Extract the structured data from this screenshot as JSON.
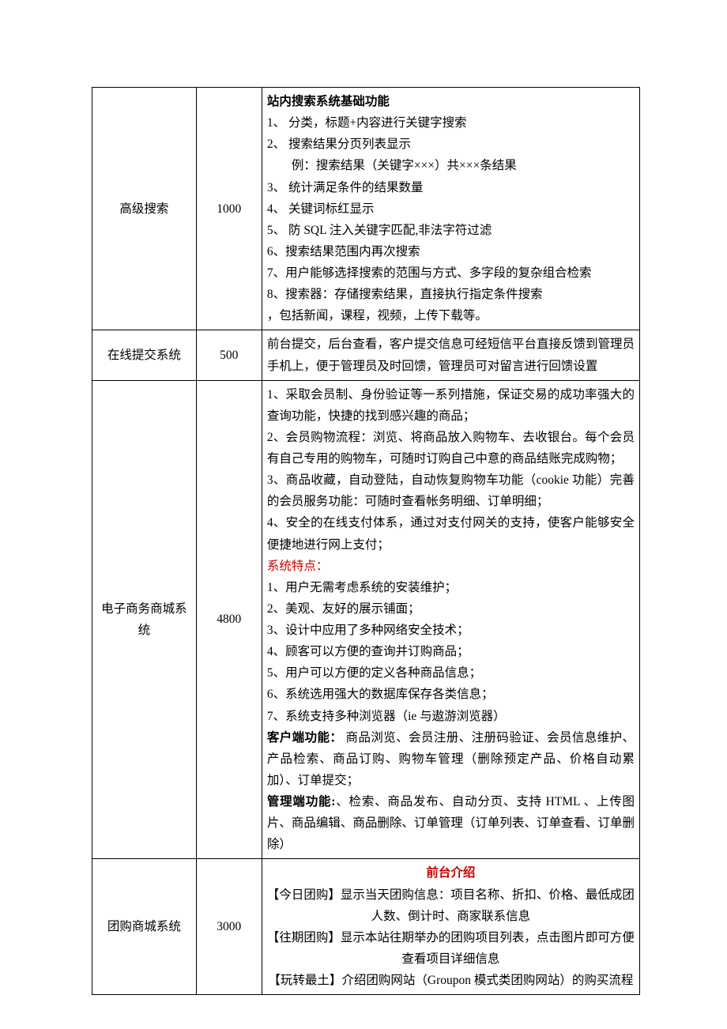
{
  "rows": [
    {
      "name": "高级搜索",
      "price": "1000",
      "desc": [
        {
          "text": "站内搜索系统基础功能",
          "bold": true
        },
        {
          "text": "1、 分类，标题+内容进行关键字搜索"
        },
        {
          "text": "2、 搜索结果分页列表显示"
        },
        {
          "text": "例：搜索结果（关键字×××）共×××条结果",
          "indent": true
        },
        {
          "text": "3、 统计满足条件的结果数量"
        },
        {
          "text": "4、 关键词标红显示"
        },
        {
          "text": "5、 防 SQL 注入关键字匹配,非法字符过滤"
        },
        {
          "text": "6、搜索结果范围内再次搜索"
        },
        {
          "text": "7、用户能够选择搜索的范围与方式、多字段的复杂组合检索"
        },
        {
          "text": "8、搜索器：存储搜索结果，直接执行指定条件搜索"
        },
        {
          "text": "，包括新闻，课程，视频，上传下载等。"
        }
      ]
    },
    {
      "name": "在线提交系统",
      "price": "500",
      "desc": [
        {
          "text": "前台提交，后台查看，客户提交信息可经短信平台直接反馈到管理员手机上，便于管理员及时回馈，管理员可对留言进行回馈设置"
        }
      ]
    },
    {
      "name": "电子商务商城系统",
      "price": "4800",
      "desc": [
        {
          "text": "1、采取会员制、身份验证等一系列措施，保证交易的成功率强大的查询功能，快捷的找到感兴趣的商品；"
        },
        {
          "text": "2、会员购物流程：浏览、将商品放入购物车、去收银台。每个会员有自己专用的购物车，可随时订购自己中意的商品结账完成购物；"
        },
        {
          "text": "3、商品收藏，自动登陆，自动恢复购物车功能（cookie 功能）完善的会员服务功能：可随时查看帐务明细、订单明细；"
        },
        {
          "text": "4、安全的在线支付体系，通过对支付网关的支持，使客户能够安全便捷地进行网上支付；"
        },
        {
          "text": "系统特点：",
          "red": true
        },
        {
          "text": "1、用户无需考虑系统的安装维护；"
        },
        {
          "text": "2、美观、友好的展示铺面；"
        },
        {
          "text": "3、设计中应用了多种网络安全技术；"
        },
        {
          "text": "4、顾客可以方便的查询并订购商品；"
        },
        {
          "text": "5、用户可以方便的定义各种商品信息；"
        },
        {
          "text": "6、系统选用强大的数据库保存各类信息；"
        },
        {
          "text": "7、系统支持多种浏览器（ie 与遨游浏览器）"
        },
        {
          "spans": [
            {
              "text": "客户端功能：",
              "bold": true
            },
            {
              "text": "  商品浏览、会员注册、注册码验证、会员信息维护、产品检索、商品订购、购物车管理（删除预定产品、价格自动累加）、订单提交；"
            }
          ]
        },
        {
          "spans": [
            {
              "text": "管理端功能:",
              "bold": true
            },
            {
              "text": "、检索、商品发布、自动分页、支持 HTML 、上传图片、商品编辑、商品删除、订单管理（订单列表、订单查看、订单删除）"
            }
          ]
        }
      ]
    },
    {
      "name": "团购商城系统",
      "price": "3000",
      "descCenter": true,
      "desc": [
        {
          "text": "前台介绍",
          "bold": true,
          "red": true
        },
        {
          "text": "【今日团购】显示当天团购信息：项目名称、折扣、价格、最低成团人数、倒计时、商家联系信息"
        },
        {
          "text": "【往期团购】显示本站往期举办的团购项目列表，点击图片即可方便查看项目详细信息"
        },
        {
          "text": "【玩转最土】介绍团购网站（Groupon 模式类团购网站）的购买流程"
        }
      ]
    }
  ]
}
